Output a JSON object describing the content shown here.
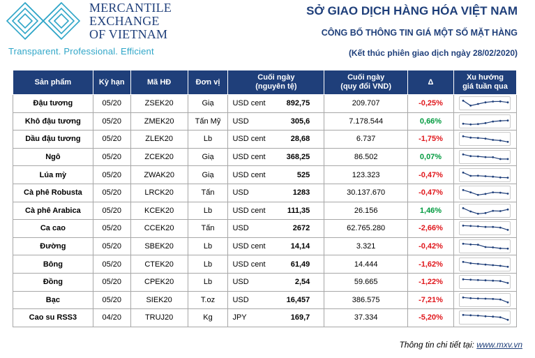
{
  "brand": {
    "name_lines": [
      "MERCANTILE",
      "EXCHANGE",
      "OF VIETNAM"
    ],
    "tagline": "Transparent. Professional. Efficient",
    "colors": {
      "navy": "#1f3f7a",
      "teal": "#2fa6c8",
      "negative": "#e0161b",
      "positive": "#009a3e"
    }
  },
  "header": {
    "title": "SỞ GIAO DỊCH HÀNG HÓA VIỆT NAM",
    "subtitle": "CÔNG BỐ THÔNG TIN GIÁ MỘT SỐ MẶT HÀNG",
    "note": "(Kết thúc phiên giao dịch ngày 28/02/2020)"
  },
  "table": {
    "columns": [
      "Sản phẩm",
      "Kỳ hạn",
      "Mã HĐ",
      "Đơn vị",
      "Cuối ngày (nguyên tệ)",
      "Cuối ngày (quy đổi VND)",
      "Δ",
      "Xu hướng giá tuần qua"
    ],
    "rows": [
      {
        "product": "Đậu tương",
        "term": "05/20",
        "code": "ZSEK20",
        "unit": "Giạ",
        "currency": "USD cent",
        "close": "892,75",
        "vnd": "209.707",
        "change": "-0,25%",
        "dir": "neg",
        "trend": [
          5,
          2,
          3,
          4,
          4.5,
          4.6,
          4
        ]
      },
      {
        "product": "Khô đậu tương",
        "term": "05/20",
        "code": "ZMEK20",
        "unit": "Tấn Mỹ",
        "currency": "USD",
        "close": "305,6",
        "vnd": "7.178.544",
        "change": "0,66%",
        "dir": "pos",
        "trend": [
          2,
          1.6,
          1.8,
          2.4,
          3.4,
          3.8,
          4
        ]
      },
      {
        "product": "Dầu đậu tương",
        "term": "05/20",
        "code": "ZLEK20",
        "unit": "Lb",
        "currency": "USD cent",
        "close": "28,68",
        "vnd": "6.737",
        "change": "-1,75%",
        "dir": "neg",
        "trend": [
          5,
          4.2,
          4,
          3.6,
          2.8,
          2.4,
          1.6
        ]
      },
      {
        "product": "Ngô",
        "term": "05/20",
        "code": "ZCEK20",
        "unit": "Giạ",
        "currency": "USD cent",
        "close": "368,25",
        "vnd": "86.502",
        "change": "0,07%",
        "dir": "pos",
        "trend": [
          5,
          4,
          3.8,
          3.4,
          3.3,
          2.2,
          2.2
        ]
      },
      {
        "product": "Lúa mỳ",
        "term": "05/20",
        "code": "ZWAK20",
        "unit": "Giạ",
        "currency": "USD cent",
        "close": "525",
        "vnd": "123.323",
        "change": "-0,47%",
        "dir": "neg",
        "trend": [
          5,
          3,
          3.1,
          2.8,
          2.5,
          2,
          1.9
        ]
      },
      {
        "product": "Cà phê Robusta",
        "term": "05/20",
        "code": "LRCK20",
        "unit": "Tấn",
        "currency": "USD",
        "close": "1283",
        "vnd": "30.137.670",
        "change": "-0,47%",
        "dir": "neg",
        "trend": [
          5,
          3.6,
          2,
          2.6,
          3.6,
          3.4,
          2.8
        ]
      },
      {
        "product": "Cà phê Arabica",
        "term": "05/20",
        "code": "KCEK20",
        "unit": "Lb",
        "currency": "USD cent",
        "close": "111,35",
        "vnd": "26.156",
        "change": "1,46%",
        "dir": "pos",
        "trend": [
          5,
          3,
          1.6,
          2,
          3.4,
          3.2,
          4.2
        ]
      },
      {
        "product": "Ca cao",
        "term": "05/20",
        "code": "CCEK20",
        "unit": "Tấn",
        "currency": "USD",
        "close": "2672",
        "vnd": "62.765.280",
        "change": "-2,66%",
        "dir": "neg",
        "trend": [
          5,
          4.8,
          4.6,
          4.2,
          4.2,
          3.8,
          2.4
        ]
      },
      {
        "product": "Đường",
        "term": "05/20",
        "code": "SBEK20",
        "unit": "Lb",
        "currency": "USD cent",
        "close": "14,14",
        "vnd": "3.321",
        "change": "-0,42%",
        "dir": "neg",
        "trend": [
          5,
          4.6,
          4.4,
          3,
          2.8,
          2.2,
          2
        ]
      },
      {
        "product": "Bông",
        "term": "05/20",
        "code": "CTEK20",
        "unit": "Lb",
        "currency": "USD cent",
        "close": "61,49",
        "vnd": "14.444",
        "change": "-1,62%",
        "dir": "neg",
        "trend": [
          5,
          4.2,
          3.8,
          3.4,
          3,
          2.6,
          2
        ]
      },
      {
        "product": "Đồng",
        "term": "05/20",
        "code": "CPEK20",
        "unit": "Lb",
        "currency": "USD",
        "close": "2,54",
        "vnd": "59.665",
        "change": "-1,22%",
        "dir": "neg",
        "trend": [
          5,
          4.8,
          4.6,
          4.4,
          4.2,
          4,
          2.8
        ]
      },
      {
        "product": "Bạc",
        "term": "05/20",
        "code": "SIEK20",
        "unit": "T.oz",
        "currency": "USD",
        "close": "16,457",
        "vnd": "386.575",
        "change": "-7,21%",
        "dir": "neg",
        "trend": [
          5,
          4.6,
          4.4,
          4.3,
          4.1,
          3.8,
          2
        ]
      },
      {
        "product": "Cao su RSS3",
        "term": "04/20",
        "code": "TRUJ20",
        "unit": "Kg",
        "currency": "JPY",
        "close": "169,7",
        "vnd": "37.334",
        "change": "-5,20%",
        "dir": "neg",
        "trend": [
          5,
          4.8,
          4.6,
          4.2,
          4,
          3.6,
          2
        ]
      }
    ]
  },
  "footer": {
    "label": "Thông tin chi tiết tại: ",
    "url": "www.mxv.vn"
  }
}
